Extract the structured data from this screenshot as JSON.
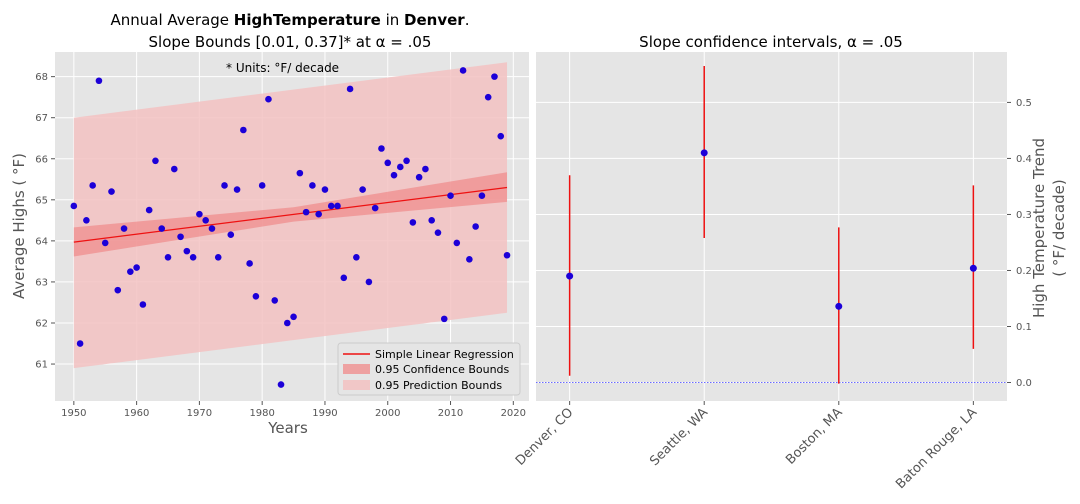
{
  "chart_data": [
    {
      "type": "scatter",
      "title_line1_parts": [
        "Annual Average ",
        "HighTemperature",
        " in ",
        "Denver",
        "."
      ],
      "title_line2": "Slope Bounds [0.01, 0.37]* at α = .05",
      "annotation": "* Units:  °F/ decade",
      "xlabel": "Years",
      "ylabel": "Average Highs ( °F)",
      "xlim": [
        1947,
        2022.5
      ],
      "ylim": [
        60.1,
        68.6
      ],
      "xticks": [
        1950,
        1960,
        1970,
        1980,
        1990,
        2000,
        2010,
        2020
      ],
      "yticks": [
        61,
        62,
        63,
        64,
        65,
        66,
        67,
        68
      ],
      "grid": true,
      "legend_placement": "lower-right",
      "legend": [
        "Simple Linear Regression",
        "0.95 Confidence Bounds",
        "0.95 Prediction Bounds"
      ],
      "colors": {
        "points": "#1c00d8",
        "regression": "#ee1111",
        "confidence": "#f08a8a",
        "prediction": "#f3c2c2",
        "background": "#e5e5e5"
      },
      "regression": {
        "x": [
          1950,
          2019
        ],
        "y": [
          63.97,
          65.3
        ]
      },
      "confidence_band": {
        "x": [
          1950,
          1985,
          2019
        ],
        "lower": [
          63.62,
          64.47,
          64.95
        ],
        "upper": [
          64.33,
          64.82,
          65.67
        ]
      },
      "prediction_band": {
        "x": [
          1950,
          2019
        ],
        "lower": [
          60.9,
          62.25
        ],
        "upper": [
          67.0,
          68.35
        ]
      },
      "x": [
        1950,
        1951,
        1952,
        1953,
        1954,
        1955,
        1956,
        1957,
        1958,
        1959,
        1960,
        1961,
        1962,
        1963,
        1964,
        1965,
        1966,
        1967,
        1968,
        1969,
        1970,
        1971,
        1972,
        1973,
        1974,
        1975,
        1976,
        1977,
        1978,
        1979,
        1980,
        1981,
        1982,
        1983,
        1984,
        1985,
        1986,
        1987,
        1988,
        1989,
        1990,
        1991,
        1992,
        1993,
        1994,
        1995,
        1996,
        1997,
        1998,
        1999,
        2000,
        2001,
        2002,
        2003,
        2004,
        2005,
        2006,
        2007,
        2008,
        2009,
        2010,
        2011,
        2012,
        2013,
        2014,
        2015,
        2016,
        2017,
        2018,
        2019
      ],
      "y": [
        64.85,
        61.5,
        64.5,
        65.35,
        67.9,
        63.95,
        65.2,
        62.8,
        64.3,
        63.25,
        63.35,
        62.45,
        64.75,
        65.95,
        64.3,
        63.6,
        65.75,
        64.1,
        63.75,
        63.6,
        64.65,
        64.5,
        64.3,
        63.6,
        65.35,
        64.15,
        65.25,
        66.7,
        63.45,
        62.65,
        65.35,
        67.45,
        62.55,
        60.5,
        62.0,
        62.15,
        65.65,
        64.7,
        65.35,
        64.65,
        65.25,
        64.85,
        64.85,
        63.1,
        67.7,
        63.6,
        65.25,
        63.0,
        64.8,
        66.25,
        65.9,
        65.6,
        65.8,
        65.95,
        64.45,
        65.55,
        65.75,
        64.5,
        64.2,
        62.1,
        65.1,
        63.95,
        68.15,
        63.55,
        64.35,
        65.1,
        67.5,
        68.0,
        66.55,
        63.65
      ]
    },
    {
      "type": "errorbar",
      "title": "Slope confidence intervals, α = .05",
      "ylabel_line1": "High Temperature Trend",
      "ylabel_line2": "( °F/ decade)",
      "ylim": [
        -0.033,
        0.59
      ],
      "yticks": [
        0.0,
        0.1,
        0.2,
        0.3,
        0.4,
        0.5
      ],
      "ytick_labels": [
        "0.0",
        "0.1",
        "0.2",
        "0.3",
        "0.4",
        "0.5"
      ],
      "grid": true,
      "reference_line": 0,
      "categories": [
        "Denver, CO",
        "Seattle, WA",
        "Boston, MA",
        "Baton Rouge, LA"
      ],
      "estimate": [
        0.19,
        0.41,
        0.136,
        0.204
      ],
      "lower": [
        0.012,
        0.258,
        -0.002,
        0.06
      ],
      "upper": [
        0.37,
        0.565,
        0.277,
        0.352
      ],
      "colors": {
        "points": "#1c00d8",
        "intervals": "#ee1111",
        "reference": "#3a3aff",
        "background": "#e5e5e5"
      }
    }
  ]
}
